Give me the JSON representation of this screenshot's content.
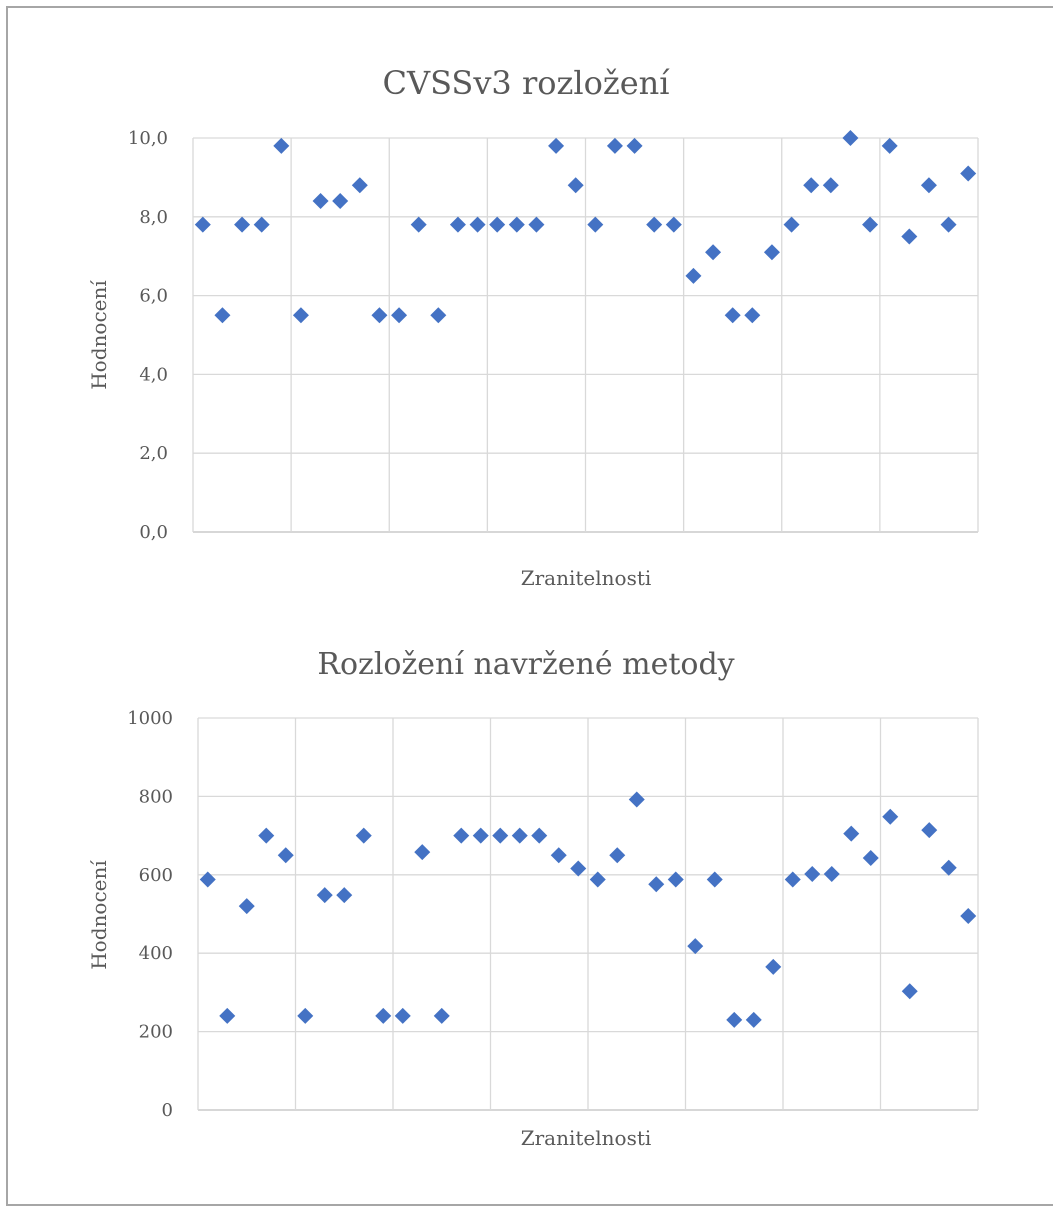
{
  "chart_data": [
    {
      "type": "scatter",
      "title": "CVSSv3 rozložení",
      "xlabel": "Zranitelnosti",
      "ylabel": "Hodnocení",
      "ylim": [
        0,
        10
      ],
      "yticks": [
        "0,0",
        "2,0",
        "4,0",
        "6,0",
        "8,0",
        "10,0"
      ],
      "xlim": [
        0,
        40
      ],
      "grid": true,
      "marker": "diamond",
      "color": "#4472c4",
      "values": [
        7.8,
        5.5,
        7.8,
        7.8,
        9.8,
        5.5,
        8.4,
        8.4,
        8.8,
        5.5,
        5.5,
        7.8,
        5.5,
        7.8,
        7.8,
        7.8,
        7.8,
        7.8,
        9.8,
        8.8,
        7.8,
        9.8,
        9.8,
        7.8,
        7.8,
        6.5,
        7.1,
        5.5,
        5.5,
        7.1,
        7.8,
        8.8,
        8.8,
        10.0,
        7.8,
        9.8,
        7.5,
        8.8,
        7.8,
        9.1
      ]
    },
    {
      "type": "scatter",
      "title": "Rozložení navržené metody",
      "xlabel": "Zranitelnosti",
      "ylabel": "Hodnocení",
      "ylim": [
        0,
        1000
      ],
      "yticks": [
        "0",
        "200",
        "400",
        "600",
        "800",
        "1000"
      ],
      "xlim": [
        0,
        40
      ],
      "grid": true,
      "marker": "diamond",
      "color": "#4472c4",
      "values": [
        588,
        240,
        520,
        700,
        650,
        240,
        548,
        548,
        700,
        240,
        240,
        658,
        240,
        700,
        700,
        700,
        700,
        700,
        650,
        616,
        588,
        650,
        792,
        576,
        588,
        418,
        588,
        230,
        230,
        365,
        588,
        602,
        602,
        705,
        643,
        748,
        303,
        714,
        618,
        495
      ]
    }
  ]
}
